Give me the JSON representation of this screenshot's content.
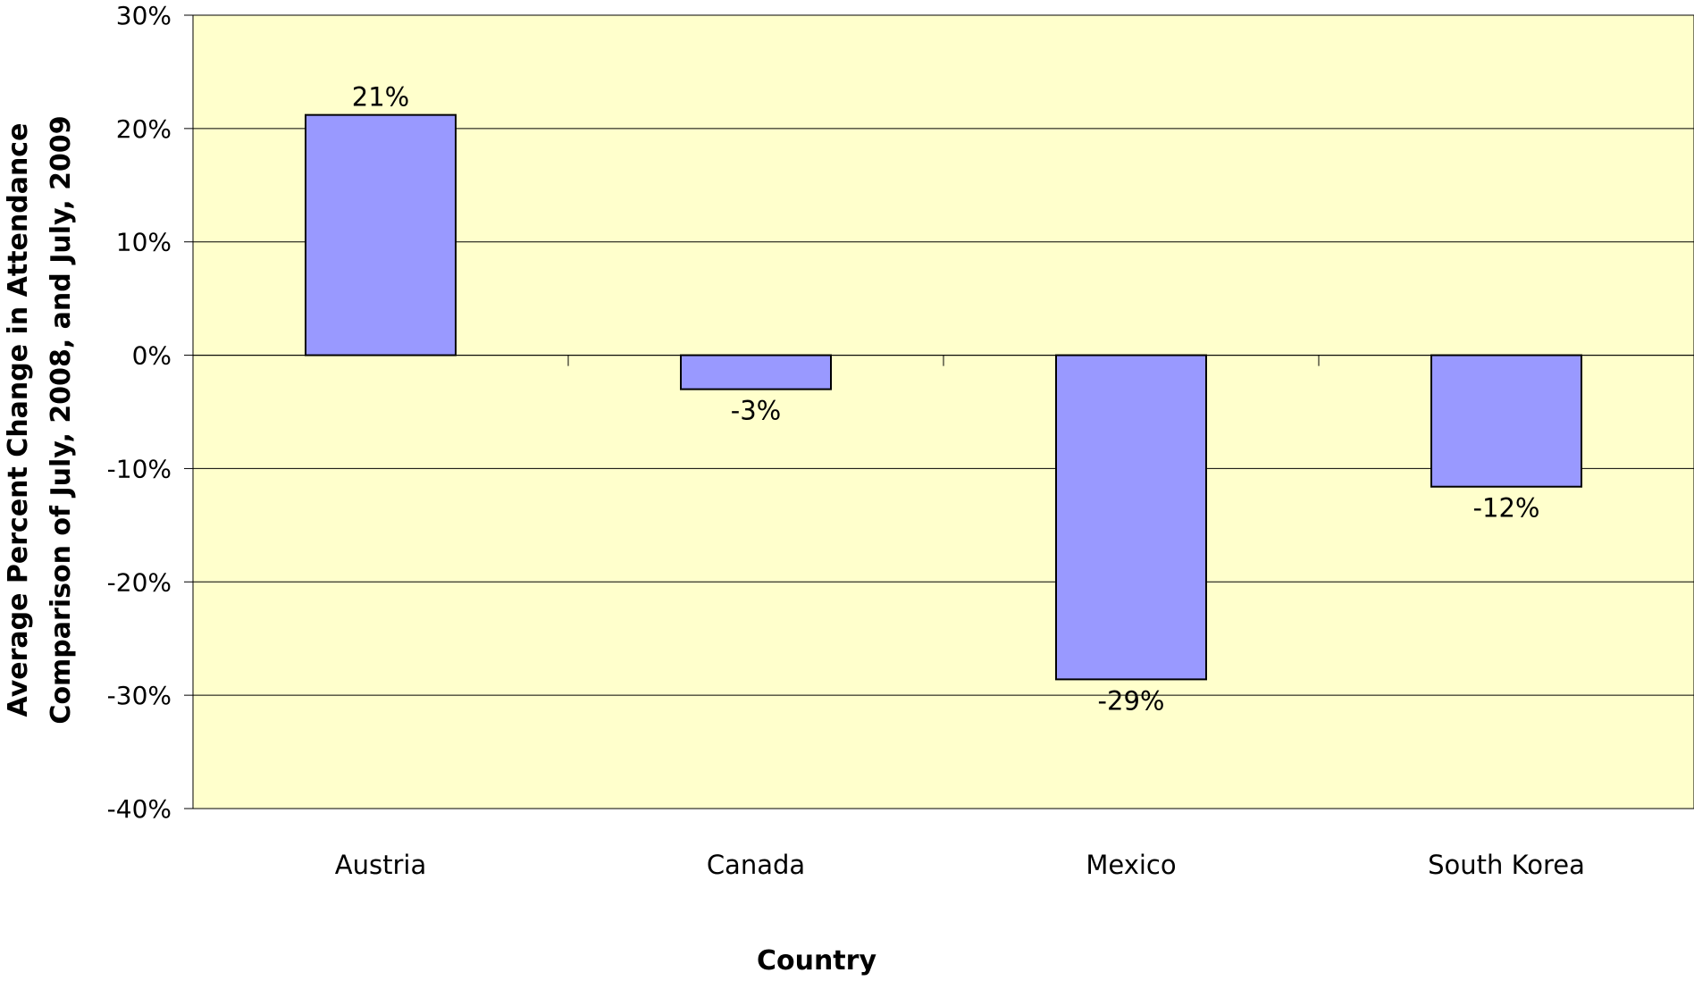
{
  "chart_data": {
    "type": "bar",
    "categories": [
      "Austria",
      "Canada",
      "Mexico",
      "South Korea"
    ],
    "values": [
      21.2,
      -3.0,
      -28.6,
      -11.6
    ],
    "data_labels": [
      "21%",
      "-3%",
      "-29%",
      "-12%"
    ],
    "ylim": [
      -40,
      30
    ],
    "yticks": [
      30,
      20,
      10,
      0,
      -10,
      -20,
      -30,
      -40
    ],
    "ytick_labels": [
      "30%",
      "20%",
      "10%",
      "0%",
      "-10%",
      "-20%",
      "-30%",
      "-40%"
    ],
    "xlabel": "Country",
    "ylabel_line1": "Average Percent Change in Attendance",
    "ylabel_line2": "Comparison of July, 2008, and July, 2009",
    "grid": true,
    "legend": "none",
    "colors": {
      "bar_fill": "#9999ff",
      "bar_stroke": "#000000",
      "plot_background": "#ffffcc",
      "gridline": "#000000"
    }
  }
}
